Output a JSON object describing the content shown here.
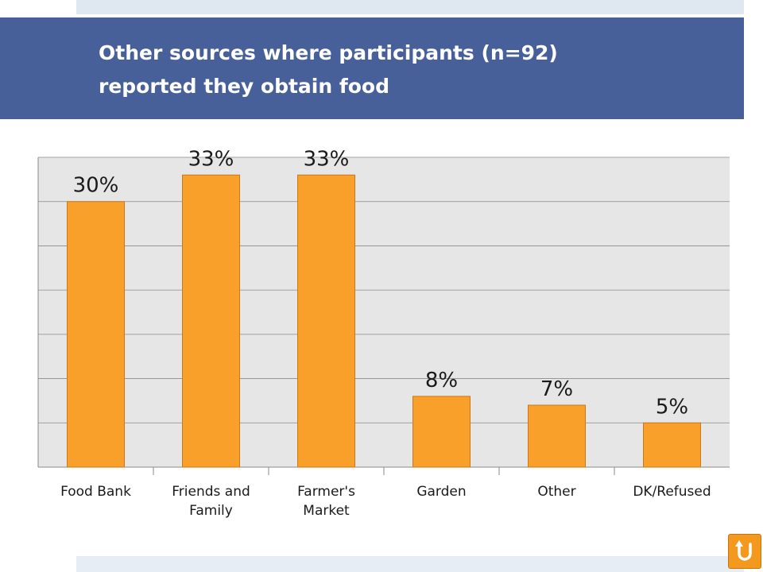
{
  "slide": {
    "title_line1": "Other sources where participants (n=92)",
    "title_line2": "reported they obtain food"
  },
  "colors": {
    "title_bar": "#48609a",
    "bar_fill": "#f9a02a",
    "plot_background": "#e6e6e6",
    "nav_button": "#f39a1e"
  },
  "chart_data": {
    "type": "bar",
    "title": "",
    "xlabel": "",
    "ylabel": "",
    "categories": [
      [
        "Food Bank"
      ],
      [
        "Friends and",
        "Family"
      ],
      [
        "Farmer's",
        "Market"
      ],
      [
        "Garden"
      ],
      [
        "Other"
      ],
      [
        "DK/Refused"
      ]
    ],
    "values": [
      30,
      33,
      33,
      8,
      7,
      5
    ],
    "data_labels": [
      "30%",
      "33%",
      "33%",
      "8%",
      "7%",
      "5%"
    ],
    "ylim": [
      0,
      35
    ],
    "grid": true,
    "legend": "none"
  },
  "nav": {
    "icon": "return-arrow-icon"
  }
}
